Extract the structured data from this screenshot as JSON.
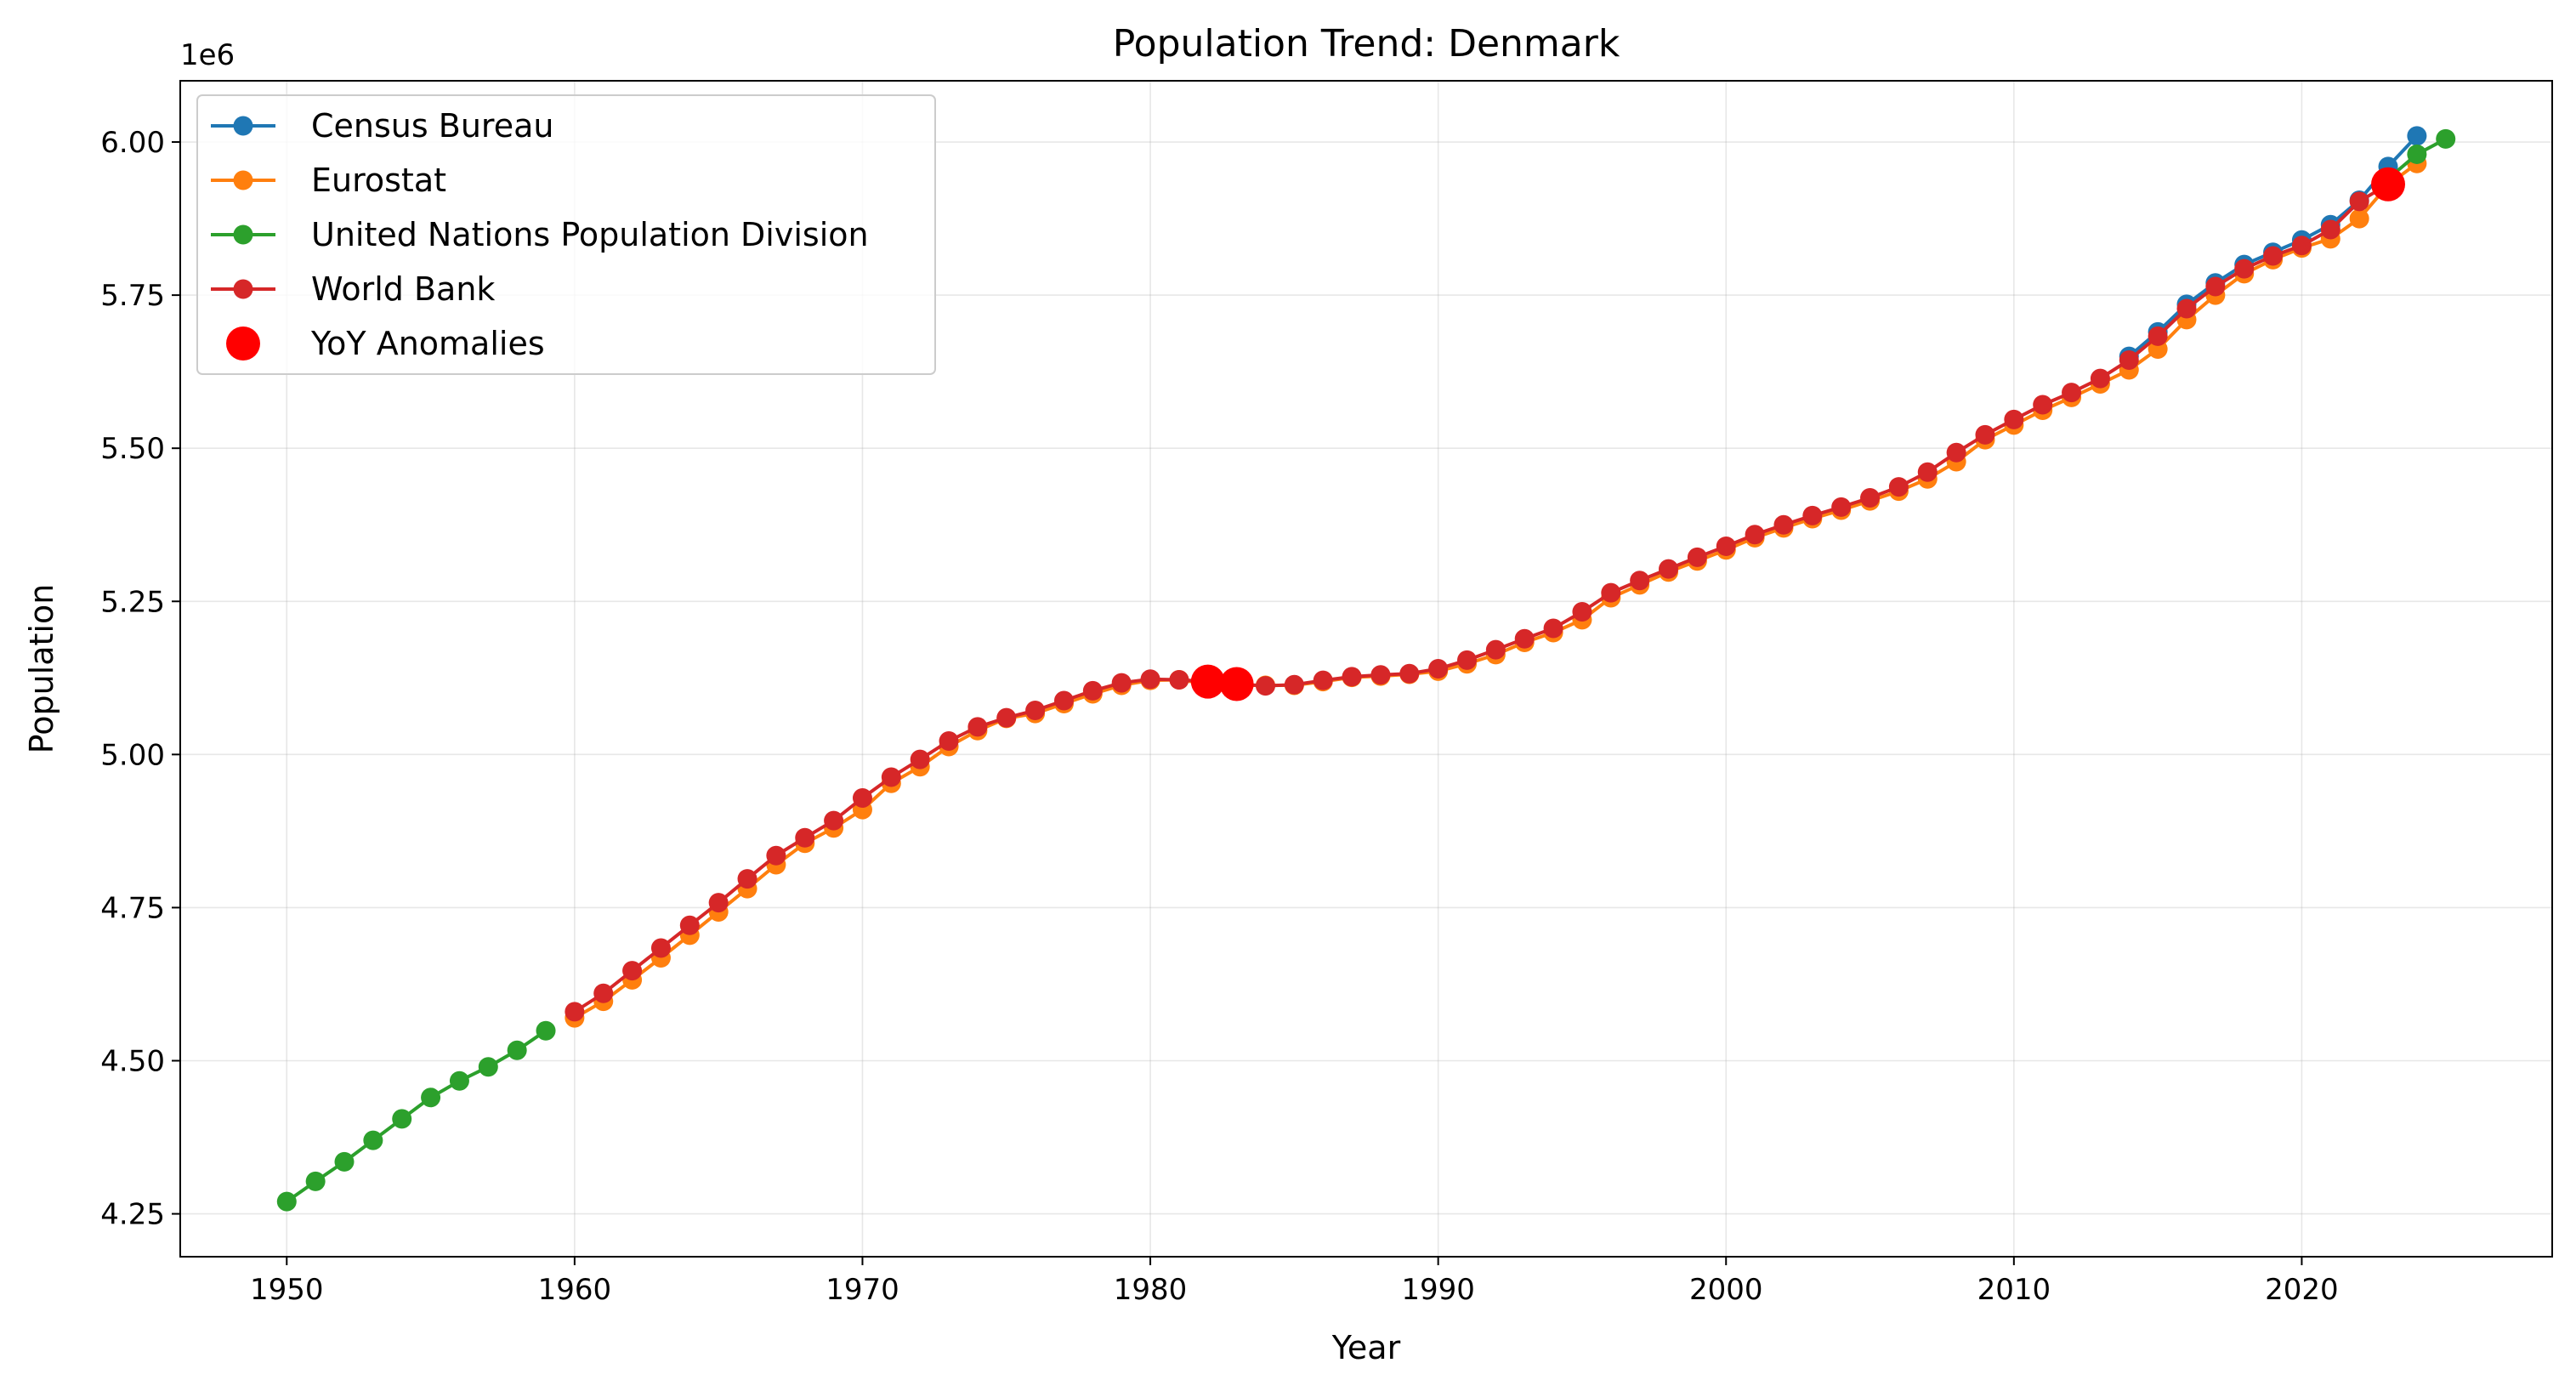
{
  "chart_data": {
    "type": "line",
    "title": "Population Trend: Denmark",
    "xlabel": "Year",
    "ylabel": "Population",
    "y_offset_label": "1e6",
    "xlim": [
      1946.3,
      2028.7
    ],
    "ylim": [
      4180000,
      6100000
    ],
    "xticks": [
      1950,
      1960,
      1970,
      1980,
      1990,
      2000,
      2010,
      2020
    ],
    "xtick_labels": [
      "1950",
      "1960",
      "1970",
      "1980",
      "1990",
      "2000",
      "2010",
      "2020"
    ],
    "yticks": [
      4250000,
      4500000,
      4750000,
      5000000,
      5250000,
      5500000,
      5750000,
      6000000
    ],
    "ytick_labels": [
      "4.25",
      "4.50",
      "4.75",
      "5.00",
      "5.25",
      "5.50",
      "5.75",
      "6.00"
    ],
    "grid": true,
    "legend_position": "top-left",
    "series": [
      {
        "name": "Census Bureau",
        "color": "#1f77b4",
        "x": [
          2014,
          2015,
          2016,
          2017,
          2018,
          2019,
          2020,
          2021,
          2022,
          2023,
          2024
        ],
        "values": [
          5650000,
          5690000,
          5735000,
          5770000,
          5800000,
          5820000,
          5840000,
          5865000,
          5905000,
          5960000,
          6010000
        ]
      },
      {
        "name": "Eurostat",
        "color": "#ff7f0e",
        "x": [
          1960,
          1961,
          1962,
          1963,
          1964,
          1965,
          1966,
          1967,
          1968,
          1969,
          1970,
          1971,
          1972,
          1973,
          1974,
          1975,
          1976,
          1977,
          1978,
          1979,
          1980,
          1981,
          1982,
          1983,
          1984,
          1985,
          1986,
          1987,
          1988,
          1989,
          1990,
          1991,
          1992,
          1993,
          1994,
          1995,
          1996,
          1997,
          1998,
          1999,
          2000,
          2001,
          2002,
          2003,
          2004,
          2005,
          2006,
          2007,
          2008,
          2009,
          2010,
          2011,
          2012,
          2013,
          2014,
          2015,
          2016,
          2017,
          2018,
          2019,
          2020,
          2021,
          2022,
          2023,
          2024
        ],
        "values": [
          4570000,
          4597000,
          4632000,
          4668000,
          4705000,
          4743000,
          4781000,
          4820000,
          4855000,
          4880000,
          4910000,
          4953000,
          4980000,
          5013000,
          5039000,
          5059000,
          5067000,
          5083000,
          5099000,
          5113000,
          5121000,
          5122000,
          5115000,
          5113000,
          5113000,
          5113000,
          5119000,
          5126000,
          5128000,
          5131000,
          5136000,
          5148000,
          5163000,
          5183000,
          5199000,
          5220000,
          5256000,
          5277000,
          5298000,
          5316000,
          5334000,
          5354000,
          5370000,
          5385000,
          5399000,
          5414000,
          5430000,
          5450000,
          5478000,
          5514000,
          5538000,
          5562000,
          5583000,
          5605000,
          5628000,
          5662000,
          5710000,
          5750000,
          5785000,
          5808000,
          5827000,
          5842000,
          5875000,
          5930000,
          5965000
        ]
      },
      {
        "name": "United Nations Population Division",
        "color": "#2ca02c",
        "x": [
          1950,
          1951,
          1952,
          1953,
          1954,
          1955,
          1956,
          1957,
          1958,
          1959,
          2023,
          2024,
          2025
        ],
        "values": [
          4270000,
          4303000,
          4335000,
          4370000,
          4405000,
          4440000,
          4467000,
          4490000,
          4517000,
          4549000,
          5940000,
          5980000,
          6005000
        ]
      },
      {
        "name": "World Bank",
        "color": "#d62728",
        "x": [
          1960,
          1961,
          1962,
          1963,
          1964,
          1965,
          1966,
          1967,
          1968,
          1969,
          1970,
          1971,
          1972,
          1973,
          1974,
          1975,
          1976,
          1977,
          1978,
          1979,
          1980,
          1981,
          1982,
          1983,
          1984,
          1985,
          1986,
          1987,
          1988,
          1989,
          1990,
          1991,
          1992,
          1993,
          1994,
          1995,
          1996,
          1997,
          1998,
          1999,
          2000,
          2001,
          2002,
          2003,
          2004,
          2005,
          2006,
          2007,
          2008,
          2009,
          2010,
          2011,
          2012,
          2013,
          2014,
          2015,
          2016,
          2017,
          2018,
          2019,
          2020,
          2021,
          2022,
          2023
        ],
        "values": [
          4580000,
          4610000,
          4647000,
          4684000,
          4721000,
          4758000,
          4797000,
          4835000,
          4864000,
          4892000,
          4929000,
          4963000,
          4992000,
          5022000,
          5045000,
          5060000,
          5072000,
          5088000,
          5104000,
          5117000,
          5123000,
          5122000,
          5119000,
          5115000,
          5112000,
          5114000,
          5121000,
          5127000,
          5130000,
          5132000,
          5140000,
          5154000,
          5171000,
          5189000,
          5206000,
          5233000,
          5264000,
          5284000,
          5303000,
          5322000,
          5340000,
          5359000,
          5375000,
          5390000,
          5404000,
          5419000,
          5437000,
          5461000,
          5493000,
          5522000,
          5547000,
          5571000,
          5591000,
          5614000,
          5644000,
          5683000,
          5728000,
          5764000,
          5793000,
          5814000,
          5831000,
          5857000,
          5903000,
          5931000
        ]
      }
    ],
    "anomalies": {
      "name": "YoY Anomalies",
      "color": "#ff0000",
      "x": [
        1982,
        1983,
        2023
      ],
      "values": [
        5119000,
        5115000,
        5931000
      ]
    }
  }
}
